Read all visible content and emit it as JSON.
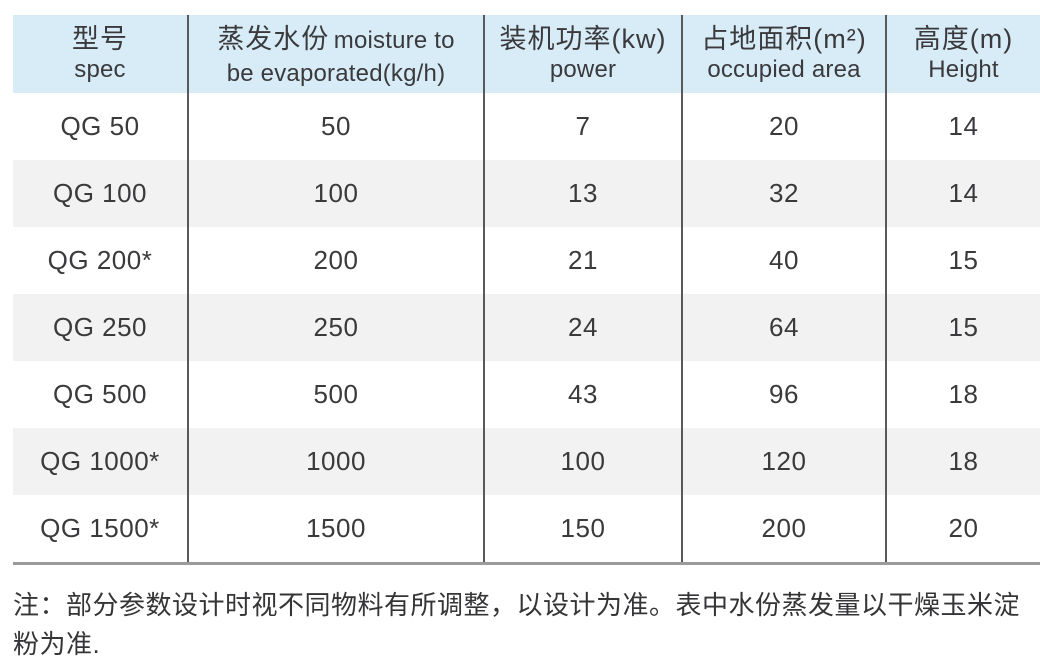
{
  "table": {
    "columns": [
      {
        "zh": "型号",
        "en": "spec"
      },
      {
        "zh": "蒸发水份",
        "en": "moisture to be evaporated(kg/h)"
      },
      {
        "zh": "装机功率(kw)",
        "en": "power"
      },
      {
        "zh": "占地面积(m²)",
        "en": "occupied area"
      },
      {
        "zh": "高度(m)",
        "en": "Height"
      }
    ],
    "rows": [
      [
        "QG 50",
        "50",
        "7",
        "20",
        "14"
      ],
      [
        "QG 100",
        "100",
        "13",
        "32",
        "14"
      ],
      [
        "QG 200*",
        "200",
        "21",
        "40",
        "15"
      ],
      [
        "QG 250",
        "250",
        "24",
        "64",
        "15"
      ],
      [
        "QG 500",
        "500",
        "43",
        "96",
        "18"
      ],
      [
        "QG 1000*",
        "1000",
        "100",
        "120",
        "18"
      ],
      [
        "QG 1500*",
        "1500",
        "150",
        "200",
        "20"
      ]
    ]
  },
  "note": "注：部分参数设计时视不同物料有所调整，以设计为准。表中水份蒸发量以干燥玉米淀粉为准.",
  "colors": {
    "header_bg": "#d8ecf8",
    "stripe_bg": "#f2f2f2",
    "divider": "#58595b",
    "bottom_rule": "#9a9a9a",
    "text": "#3a3a3c"
  }
}
